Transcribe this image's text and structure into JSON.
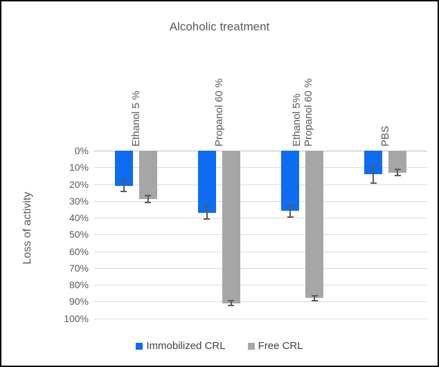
{
  "frame": {
    "background": "#ffffff",
    "border_color": "#000000"
  },
  "chart_data": {
    "type": "bar",
    "title": "Alcoholic treatment",
    "ylabel": "Loss of activity",
    "orientation": "vertical-downward",
    "categories": [
      "Ethanol 5 %",
      "Propanol 60 %",
      "Ethanol 5%\nPropanol 60 %",
      "PBS"
    ],
    "series": [
      {
        "name": "Immobilized CRL",
        "color": "#0e6cf2",
        "values_pct": [
          21,
          37,
          36,
          14
        ],
        "error_pct": [
          3.5,
          4,
          3.5,
          5.5
        ]
      },
      {
        "name": "Free CRL",
        "color": "#a6a6a6",
        "values_pct": [
          29,
          91,
          88,
          13
        ],
        "error_pct": [
          2,
          1.5,
          1.5,
          2
        ]
      }
    ],
    "y_axis": {
      "min": 0,
      "max": 100,
      "step": 10,
      "unit": "%",
      "direction": "down",
      "tick_labels": [
        "0%",
        "10%",
        "20%",
        "30%",
        "40%",
        "50%",
        "60%",
        "70%",
        "80%",
        "90%",
        "100%"
      ]
    },
    "grid": {
      "on": true,
      "color": "#d9d9d9",
      "zero_line_color": "#bfbfbf"
    },
    "error_bar_color": "#595959",
    "text_color": "#595959",
    "legend": {
      "position": "bottom",
      "entries": [
        "Immobilized CRL",
        "Free CRL"
      ]
    }
  }
}
